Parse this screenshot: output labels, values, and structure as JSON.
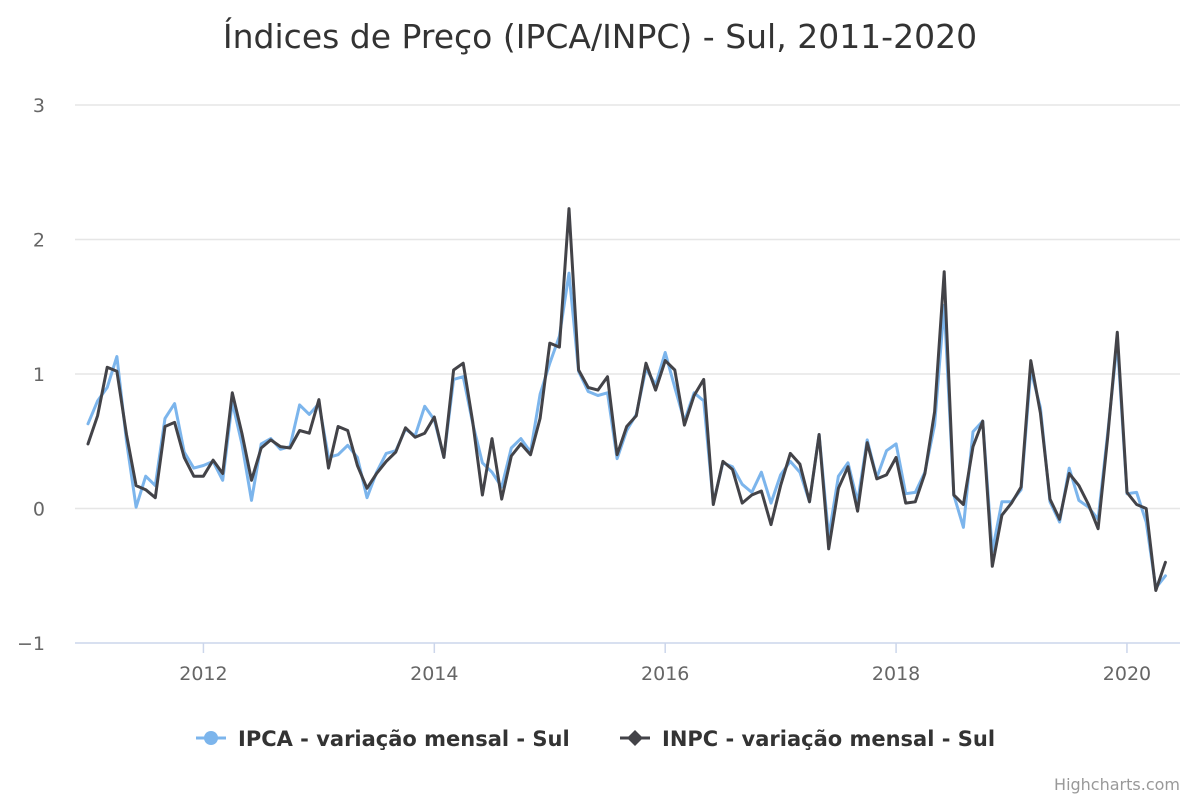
{
  "chart_data": {
    "type": "line",
    "title": "Índices de Preço (IPCA/INPC) - Sul, 2011-2020",
    "x_start": "2011-01",
    "x_end": "2020-05",
    "x_ticks": [
      2012,
      2014,
      2016,
      2018,
      2020
    ],
    "y_ticks": [
      3,
      2,
      1,
      0,
      -1
    ],
    "ylim": [
      -1,
      3
    ],
    "grid": true,
    "legend_position": "bottom",
    "credit": "Highcharts.com",
    "series": [
      {
        "name": "IPCA - variação mensal - Sul",
        "color": "#7cb5ec",
        "marker": "circle",
        "values": [
          0.63,
          0.8,
          0.9,
          1.13,
          0.5,
          0.01,
          0.24,
          0.17,
          0.67,
          0.78,
          0.42,
          0.3,
          0.32,
          0.35,
          0.21,
          0.79,
          0.48,
          0.06,
          0.48,
          0.52,
          0.44,
          0.46,
          0.77,
          0.7,
          0.78,
          0.38,
          0.4,
          0.47,
          0.38,
          0.08,
          0.27,
          0.41,
          0.43,
          0.59,
          0.54,
          0.76,
          0.66,
          0.38,
          0.96,
          0.98,
          0.63,
          0.34,
          0.27,
          0.16,
          0.45,
          0.52,
          0.42,
          0.85,
          1.08,
          1.28,
          1.75,
          1.02,
          0.87,
          0.84,
          0.86,
          0.37,
          0.58,
          0.7,
          1.04,
          0.92,
          1.16,
          0.9,
          0.65,
          0.86,
          0.8,
          0.04,
          0.34,
          0.31,
          0.18,
          0.12,
          0.27,
          0.04,
          0.25,
          0.35,
          0.27,
          0.05,
          0.55,
          -0.21,
          0.24,
          0.34,
          0.05,
          0.51,
          0.23,
          0.43,
          0.48,
          0.11,
          0.12,
          0.27,
          0.62,
          1.51,
          0.1,
          -0.14,
          0.57,
          0.65,
          -0.32,
          0.05,
          0.05,
          0.14,
          1.03,
          0.75,
          0.05,
          -0.1,
          0.3,
          0.06,
          0.01,
          -0.08,
          0.56,
          1.24,
          0.11,
          0.12,
          -0.1,
          -0.59,
          -0.5
        ]
      },
      {
        "name": "INPC - variação mensal - Sul",
        "color": "#434348",
        "marker": "diamond",
        "values": [
          0.48,
          0.69,
          1.05,
          1.02,
          0.55,
          0.17,
          0.14,
          0.08,
          0.61,
          0.64,
          0.38,
          0.24,
          0.24,
          0.36,
          0.26,
          0.86,
          0.56,
          0.21,
          0.45,
          0.51,
          0.46,
          0.45,
          0.58,
          0.56,
          0.81,
          0.3,
          0.61,
          0.58,
          0.32,
          0.15,
          0.26,
          0.35,
          0.42,
          0.6,
          0.53,
          0.56,
          0.68,
          0.38,
          1.03,
          1.08,
          0.64,
          0.1,
          0.52,
          0.07,
          0.39,
          0.48,
          0.4,
          0.67,
          1.23,
          1.2,
          2.23,
          1.03,
          0.9,
          0.88,
          0.98,
          0.4,
          0.61,
          0.69,
          1.08,
          0.88,
          1.1,
          1.03,
          0.62,
          0.84,
          0.96,
          0.03,
          0.35,
          0.29,
          0.04,
          0.1,
          0.13,
          -0.12,
          0.17,
          0.41,
          0.33,
          0.05,
          0.55,
          -0.3,
          0.15,
          0.31,
          -0.02,
          0.49,
          0.22,
          0.25,
          0.38,
          0.04,
          0.05,
          0.26,
          0.72,
          1.76,
          0.1,
          0.03,
          0.46,
          0.65,
          -0.43,
          -0.05,
          0.04,
          0.16,
          1.1,
          0.71,
          0.07,
          -0.08,
          0.26,
          0.17,
          0.03,
          -0.15,
          0.53,
          1.31,
          0.12,
          0.03,
          0.0,
          -0.61,
          -0.4
        ]
      }
    ]
  }
}
